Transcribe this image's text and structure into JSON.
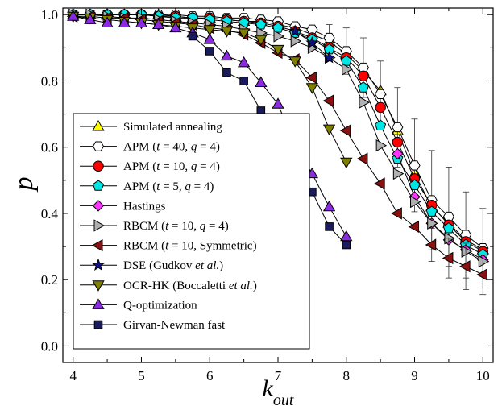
{
  "chart_data": {
    "type": "line",
    "xlabel": "k",
    "xlabel_sub": "out",
    "ylabel": "p",
    "xlim": [
      3.85,
      10.15
    ],
    "ylim": [
      -0.05,
      1.02
    ],
    "xticks": [
      4,
      5,
      6,
      7,
      8,
      9,
      10
    ],
    "yticks": [
      0.0,
      0.2,
      0.4,
      0.6,
      0.8,
      1.0
    ],
    "xtick_labels": [
      "4",
      "5",
      "6",
      "7",
      "8",
      "9",
      "10"
    ],
    "ytick_labels": [
      "0.0",
      "0.2",
      "0.4",
      "0.6",
      "0.8",
      "1.0"
    ],
    "grid": false,
    "legend_position": "left",
    "series": [
      {
        "name": "Simulated annealing",
        "marker": "triangle-up",
        "color": "#ffff00",
        "x": [
          4,
          4.25,
          4.5,
          4.75,
          5,
          5.25,
          5.5,
          5.75,
          6,
          6.25,
          6.5,
          6.75,
          7,
          7.25,
          7.5,
          7.75,
          8,
          8.25,
          8.5,
          8.75,
          9,
          9.25,
          9.5,
          9.75,
          10
        ],
        "y": [
          1.0,
          1.0,
          1.0,
          1.0,
          1.0,
          1.0,
          0.995,
          0.99,
          0.99,
          0.985,
          0.98,
          0.98,
          0.97,
          0.96,
          0.94,
          0.92,
          0.88,
          0.83,
          0.77,
          0.65,
          0.52,
          0.42,
          0.37,
          0.32,
          0.29
        ]
      },
      {
        "name": "APM (t = 40, q = 4)",
        "marker": "hexagon",
        "color": "#ffffff",
        "x": [
          4,
          4.25,
          4.5,
          4.75,
          5,
          5.25,
          5.5,
          5.75,
          6,
          6.25,
          6.5,
          6.75,
          7,
          7.25,
          7.5,
          7.75,
          8,
          8.25,
          8.5,
          8.75,
          9,
          9.25,
          9.5,
          9.75,
          10
        ],
        "y": [
          1.0,
          1.0,
          1.0,
          1.0,
          1.0,
          1.0,
          1.0,
          0.995,
          0.995,
          0.99,
          0.99,
          0.985,
          0.98,
          0.965,
          0.955,
          0.93,
          0.89,
          0.84,
          0.76,
          0.66,
          0.545,
          0.44,
          0.39,
          0.335,
          0.295
        ],
        "errors": [
          0,
          0,
          0,
          0,
          0,
          0,
          0,
          0,
          0,
          0,
          0,
          0,
          0,
          0,
          0,
          0.04,
          0.07,
          0.09,
          0.1,
          0.12,
          0.14,
          0.15,
          0.15,
          0.13,
          0.12
        ]
      },
      {
        "name": "APM (t = 10, q = 4)",
        "marker": "circle",
        "color": "#ff0000",
        "x": [
          4,
          4.25,
          4.5,
          4.75,
          5,
          5.25,
          5.5,
          5.75,
          6,
          6.25,
          6.5,
          6.75,
          7,
          7.25,
          7.5,
          7.75,
          8,
          8.25,
          8.5,
          8.75,
          9,
          9.25,
          9.5,
          9.75,
          10
        ],
        "y": [
          1.0,
          1.0,
          1.0,
          1.0,
          1.0,
          0.995,
          0.995,
          0.99,
          0.99,
          0.985,
          0.98,
          0.975,
          0.965,
          0.95,
          0.93,
          0.9,
          0.87,
          0.815,
          0.72,
          0.615,
          0.505,
          0.425,
          0.365,
          0.315,
          0.285
        ]
      },
      {
        "name": "APM (t = 5, q = 4)",
        "marker": "pentagon",
        "color": "#00e5e5",
        "x": [
          4,
          4.25,
          4.5,
          4.75,
          5,
          5.25,
          5.5,
          5.75,
          6,
          6.25,
          6.5,
          6.75,
          7,
          7.25,
          7.5,
          7.75,
          8,
          8.25,
          8.5,
          8.75,
          9,
          9.25,
          9.5,
          9.75,
          10
        ],
        "y": [
          1.0,
          1.0,
          1.0,
          1.0,
          1.0,
          0.995,
          0.99,
          0.99,
          0.985,
          0.98,
          0.975,
          0.97,
          0.96,
          0.945,
          0.925,
          0.895,
          0.86,
          0.78,
          0.665,
          0.565,
          0.485,
          0.405,
          0.355,
          0.305,
          0.275
        ]
      },
      {
        "name": "Hastings",
        "marker": "diamond",
        "color": "#ff33ff",
        "x": [
          8.75,
          9,
          9.25,
          9.5,
          9.75,
          10
        ],
        "y": [
          0.58,
          0.45,
          0.37,
          0.32,
          0.29,
          0.26
        ]
      },
      {
        "name": "RBCM (t = 10, q = 4)",
        "marker": "triangle-right",
        "color": "#b0b0b0",
        "x": [
          4,
          4.25,
          4.5,
          4.75,
          5,
          5.25,
          5.5,
          5.75,
          6,
          6.25,
          6.5,
          6.75,
          7,
          7.25,
          7.5,
          7.75,
          8,
          8.25,
          8.5,
          8.75,
          9,
          9.25,
          9.5,
          9.75,
          10
        ],
        "y": [
          1.0,
          1.0,
          0.995,
          0.99,
          0.99,
          0.985,
          0.98,
          0.975,
          0.97,
          0.965,
          0.955,
          0.945,
          0.935,
          0.92,
          0.9,
          0.87,
          0.835,
          0.735,
          0.605,
          0.52,
          0.435,
          0.37,
          0.325,
          0.285,
          0.255
        ]
      },
      {
        "name": "RBCM (t = 10, Symmetric)",
        "marker": "triangle-left",
        "color": "#8b1010",
        "x": [
          4,
          4.25,
          4.5,
          4.75,
          5,
          5.25,
          5.5,
          5.75,
          6,
          6.25,
          6.5,
          6.75,
          7,
          7.25,
          7.5,
          7.75,
          8,
          8.25,
          8.5,
          8.75,
          9,
          9.25,
          9.5,
          9.75,
          10
        ],
        "y": [
          0.995,
          0.995,
          0.99,
          0.99,
          0.985,
          0.98,
          0.975,
          0.97,
          0.96,
          0.955,
          0.94,
          0.915,
          0.885,
          0.865,
          0.81,
          0.74,
          0.65,
          0.565,
          0.49,
          0.4,
          0.36,
          0.305,
          0.265,
          0.24,
          0.215
        ],
        "errors": [
          0,
          0,
          0,
          0,
          0,
          0,
          0,
          0,
          0,
          0,
          0,
          0,
          0,
          0,
          0,
          0,
          0,
          0,
          0,
          0,
          0,
          0.05,
          0.06,
          0.07,
          0.06
        ]
      },
      {
        "name": "DSE (Gudkov et al.)",
        "marker": "star",
        "color": "#10108b",
        "x": [
          7.25,
          7.5,
          7.75
        ],
        "y": [
          0.95,
          0.915,
          0.87
        ]
      },
      {
        "name": "OCR-HK (Boccaletti et al.)",
        "marker": "triangle-down",
        "color": "#808000",
        "x": [
          4,
          4.25,
          4.5,
          4.75,
          5,
          5.25,
          5.5,
          5.75,
          6,
          6.25,
          6.5,
          6.75,
          7,
          7.25,
          7.5,
          7.75,
          8
        ],
        "y": [
          0.995,
          0.99,
          0.985,
          0.98,
          0.975,
          0.97,
          0.965,
          0.96,
          0.955,
          0.95,
          0.945,
          0.925,
          0.895,
          0.86,
          0.78,
          0.655,
          0.555
        ]
      },
      {
        "name": "Q-optimization",
        "marker": "triangle-up",
        "color": "#8a2be2",
        "x": [
          4,
          4.25,
          4.5,
          4.75,
          5,
          5.25,
          5.5,
          5.75,
          6,
          6.25,
          6.5,
          6.75,
          7,
          7.25,
          7.5,
          7.75,
          8
        ],
        "y": [
          0.995,
          0.985,
          0.975,
          0.975,
          0.975,
          0.97,
          0.96,
          0.945,
          0.925,
          0.875,
          0.855,
          0.795,
          0.73,
          0.605,
          0.52,
          0.42,
          0.33
        ]
      },
      {
        "name": "Girvan-Newman fast",
        "marker": "square",
        "color": "#1a1a5e",
        "x": [
          5.75,
          6,
          6.25,
          6.5,
          6.75,
          7,
          7.25,
          7.5,
          7.75,
          8
        ],
        "y": [
          0.935,
          0.89,
          0.825,
          0.8,
          0.71,
          0.63,
          0.515,
          0.465,
          0.36,
          0.305
        ]
      }
    ],
    "legend": {
      "entries": [
        {
          "pre": "Simulated annealing"
        },
        {
          "pre": "APM (",
          "i1": "t",
          "mid": " = 40, ",
          "i2": "q",
          "post": " = 4)"
        },
        {
          "pre": "APM (",
          "i1": "t",
          "mid": " = 10, ",
          "i2": "q",
          "post": " = 4)"
        },
        {
          "pre": "APM (",
          "i1": "t",
          "mid": " = 5, ",
          "i2": "q",
          "post": " = 4)"
        },
        {
          "pre": "Hastings"
        },
        {
          "pre": "RBCM (",
          "i1": "t",
          "mid": " = 10, ",
          "i2": "q",
          "post": " = 4)"
        },
        {
          "pre": "RBCM (",
          "i1": "t",
          "mid": " = 10, Symmetric)"
        },
        {
          "pre": "DSE (Gudkov ",
          "i1": "et al.",
          "mid": ")"
        },
        {
          "pre": "OCR-HK (Boccaletti ",
          "i1": "et al.",
          "mid": ")"
        },
        {
          "pre": "Q-optimization"
        },
        {
          "pre": "Girvan-Newman fast"
        }
      ]
    }
  }
}
